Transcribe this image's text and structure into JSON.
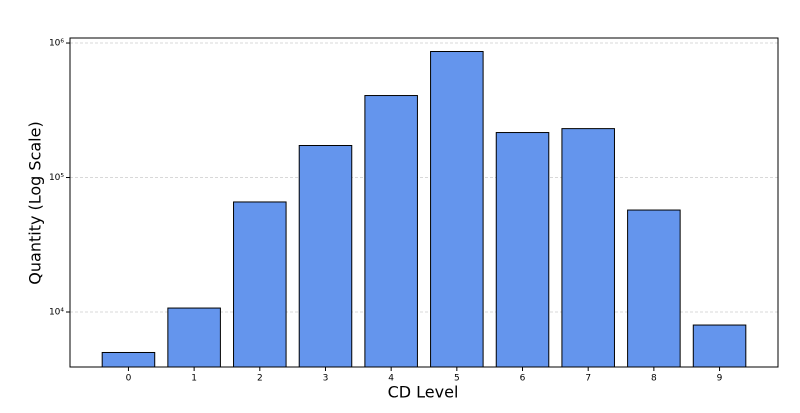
{
  "chart_data": {
    "type": "bar",
    "xlabel": "CD Level",
    "ylabel": "Quantity (Log Scale)",
    "categories": [
      "0",
      "1",
      "2",
      "3",
      "4",
      "5",
      "6",
      "7",
      "8",
      "9"
    ],
    "values": [
      5000,
      10700,
      65800,
      173000,
      407000,
      865000,
      216000,
      231000,
      57300,
      8000
    ],
    "color": "#6495ed",
    "edgecolor": "#000000",
    "log_scale": true,
    "ylim": [
      3900,
      1090000
    ],
    "yticks": [
      {
        "value": 10000,
        "label": "10⁴"
      },
      {
        "value": 100000,
        "label": "10⁵"
      },
      {
        "value": 1000000,
        "label": "10⁶"
      }
    ],
    "grid": true
  }
}
